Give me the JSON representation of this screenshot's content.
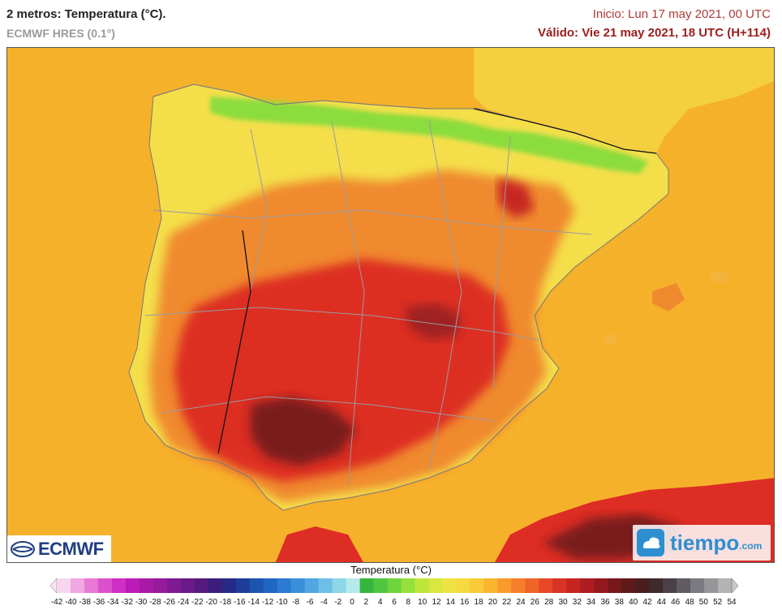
{
  "header": {
    "title": "2 metros: Temperatura (°C).",
    "model": "ECMWF HRES (0.1°)",
    "init": "Inicio: Lun 17 may 2021, 00 UTC",
    "valid": "Válido: Vie 21 may 2021, 18 UTC (H+114)"
  },
  "logos": {
    "ecmwf": "ECMWF",
    "tiempo": "tiempo",
    "tiempo_suffix": ".com"
  },
  "legend": {
    "title": "Temperatura (°C)",
    "ticks": [
      "-42",
      "-40",
      "-38",
      "-36",
      "-34",
      "-32",
      "-30",
      "-28",
      "-26",
      "-24",
      "-22",
      "-20",
      "-18",
      "-16",
      "-14",
      "-12",
      "-10",
      "-8",
      "-6",
      "-4",
      "-2",
      "0",
      "2",
      "4",
      "6",
      "8",
      "10",
      "12",
      "14",
      "16",
      "18",
      "20",
      "22",
      "24",
      "26",
      "28",
      "30",
      "32",
      "34",
      "36",
      "38",
      "40",
      "42",
      "44",
      "46",
      "48",
      "50",
      "52",
      "54"
    ],
    "colors": [
      "#f7d7ef",
      "#f0a8e3",
      "#e878d6",
      "#dd50cd",
      "#cf2fc4",
      "#bb1bb6",
      "#a81aa8",
      "#951b9c",
      "#7e1b93",
      "#6a1a89",
      "#541a7e",
      "#3b1d7c",
      "#272a86",
      "#1c3e9a",
      "#1c55b0",
      "#2066c3",
      "#2c7ad2",
      "#3a8fdb",
      "#52a6e2",
      "#6dbfe6",
      "#8ed6e8",
      "#b6eaea",
      "#35b53e",
      "#4fc640",
      "#6ed43c",
      "#94e03c",
      "#bde63d",
      "#dbe63f",
      "#efe344",
      "#f5d93f",
      "#f8c938",
      "#f9b431",
      "#f89a2c",
      "#f57f2a",
      "#ef6428",
      "#e64826",
      "#d93324",
      "#c62522",
      "#ae1d20",
      "#93191e",
      "#78181b",
      "#5e1a1b",
      "#4a1d1e",
      "#3f2a2c",
      "#4a4045",
      "#615c62",
      "#7a7a80",
      "#969699",
      "#b3b3b5"
    ],
    "min_color": "#fce6f6",
    "max_color": "#c8c8ca"
  },
  "map": {
    "sea_color": "#f6b12b",
    "land_low": "#f4df4a",
    "highlands_green": "#8bdc3e",
    "hot_orange": "#f08a2f",
    "hot_red": "#dd2d24",
    "hottest": "#7a1d1d",
    "border_color": "#9a9aa0"
  }
}
